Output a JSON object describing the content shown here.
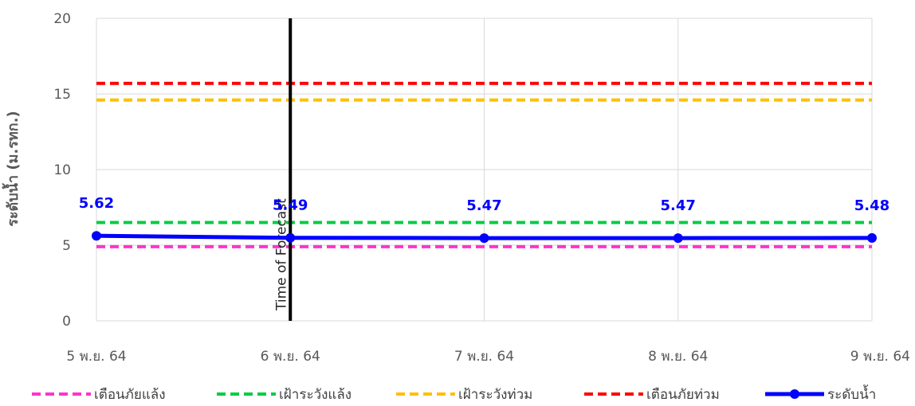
{
  "chart_data": {
    "type": "line",
    "title": "",
    "xlabel": "",
    "ylabel": "ระดับน้ำ (ม.รทก.)",
    "ylim": [
      0,
      20
    ],
    "yticks": [
      0,
      5,
      10,
      15,
      20
    ],
    "grid": true,
    "legend_position": "bottom",
    "categories": [
      "5 พ.ย. 64",
      "6 พ.ย. 64",
      "7 พ.ย. 64",
      "8 พ.ย. 64",
      "9 พ.ย. 64"
    ],
    "series": [
      {
        "name": "เตือนภัยแล้ง",
        "values": [
          4.9,
          4.9,
          4.9,
          4.9,
          4.9
        ],
        "color": "#ff33cc",
        "style": "dashed"
      },
      {
        "name": "เฝ้าระวังแล้ง",
        "values": [
          6.5,
          6.5,
          6.5,
          6.5,
          6.5
        ],
        "color": "#00cc44",
        "style": "dashed"
      },
      {
        "name": "เฝ้าระวังท่วม",
        "values": [
          14.6,
          14.6,
          14.6,
          14.6,
          14.6
        ],
        "color": "#ffc000",
        "style": "dashed"
      },
      {
        "name": "เตือนภัยท่วม",
        "values": [
          15.7,
          15.7,
          15.7,
          15.7,
          15.7
        ],
        "color": "#ff0000",
        "style": "dashed"
      },
      {
        "name": "ระดับน้ำ",
        "values": [
          5.62,
          5.49,
          5.47,
          5.47,
          5.48
        ],
        "color": "#0000ff",
        "style": "solid-marker",
        "data_labels": [
          "5.62",
          "5.49",
          "5.47",
          "5.47",
          "5.48"
        ]
      }
    ],
    "annotations": [
      {
        "type": "vertical-line",
        "category": "6 พ.ย. 64",
        "label": "Time of Forecast",
        "color": "#000000"
      }
    ]
  }
}
